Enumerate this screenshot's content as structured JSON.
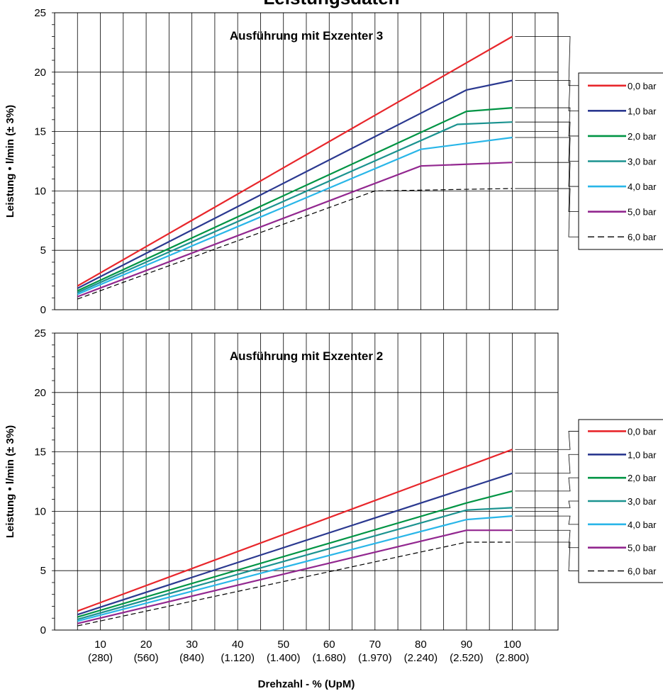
{
  "page": {
    "title": "Leistungsdaten"
  },
  "chart_data": [
    {
      "type": "line",
      "title": "Ausführung mit Exzenter 3",
      "xlabel": "",
      "ylabel": "Leistung • l/min (± 3%)",
      "xlim": [
        0,
        110
      ],
      "ylim": [
        0,
        25
      ],
      "yticks": [
        0,
        5,
        10,
        15,
        20,
        25
      ],
      "grid": true,
      "legend": "right",
      "series": [
        {
          "name": "0,0 bar",
          "color": "#e8262b",
          "dash": false,
          "x": [
            5,
            100
          ],
          "y": [
            2.0,
            23.0
          ]
        },
        {
          "name": "1,0 bar",
          "color": "#2b3990",
          "dash": false,
          "x": [
            5,
            90,
            100
          ],
          "y": [
            1.8,
            18.5,
            19.3
          ]
        },
        {
          "name": "2,0 bar",
          "color": "#009444",
          "dash": false,
          "x": [
            5,
            90,
            100
          ],
          "y": [
            1.6,
            16.7,
            17.0
          ]
        },
        {
          "name": "3,0 bar",
          "color": "#1b9390",
          "dash": false,
          "x": [
            5,
            88,
            100
          ],
          "y": [
            1.45,
            15.6,
            15.8
          ]
        },
        {
          "name": "4,0 bar",
          "color": "#29b6e8",
          "dash": false,
          "x": [
            5,
            80,
            100
          ],
          "y": [
            1.3,
            13.5,
            14.5
          ]
        },
        {
          "name": "5,0 bar",
          "color": "#92278f",
          "dash": false,
          "x": [
            5,
            80,
            100
          ],
          "y": [
            1.1,
            12.1,
            12.4
          ]
        },
        {
          "name": "6,0 bar",
          "color": "#000000",
          "dash": true,
          "x": [
            5,
            70,
            100
          ],
          "y": [
            0.9,
            10.0,
            10.2
          ]
        }
      ]
    },
    {
      "type": "line",
      "title": "Ausführung mit Exzenter 2",
      "xlabel": "Drehzahl - % (UpM)",
      "ylabel": "Leistung • l/min (± 3%)",
      "xlim": [
        0,
        110
      ],
      "ylim": [
        0,
        25
      ],
      "yticks": [
        0,
        5,
        10,
        15,
        20,
        25
      ],
      "xticks": [
        10,
        20,
        30,
        40,
        50,
        60,
        70,
        80,
        90,
        100
      ],
      "xtick_labels": [
        "10",
        "20",
        "30",
        "40",
        "50",
        "60",
        "70",
        "80",
        "90",
        "100"
      ],
      "xtick_sublabels": [
        "(280)",
        "(560)",
        "(840)",
        "(1.120)",
        "(1.400)",
        "(1.680)",
        "(1.970)",
        "(2.240)",
        "(2.520)",
        "(2.800)"
      ],
      "grid": true,
      "legend": "right",
      "series": [
        {
          "name": "0,0 bar",
          "color": "#e8262b",
          "dash": false,
          "x": [
            5,
            100
          ],
          "y": [
            1.6,
            15.2
          ]
        },
        {
          "name": "1,0 bar",
          "color": "#2b3990",
          "dash": false,
          "x": [
            5,
            100
          ],
          "y": [
            1.3,
            13.2
          ]
        },
        {
          "name": "2,0 bar",
          "color": "#009444",
          "dash": false,
          "x": [
            5,
            90,
            100
          ],
          "y": [
            1.1,
            10.7,
            11.7
          ]
        },
        {
          "name": "3,0 bar",
          "color": "#1b9390",
          "dash": false,
          "x": [
            5,
            90,
            100
          ],
          "y": [
            0.9,
            10.1,
            10.3
          ]
        },
        {
          "name": "4,0 bar",
          "color": "#29b6e8",
          "dash": false,
          "x": [
            5,
            90,
            100
          ],
          "y": [
            0.75,
            9.3,
            9.6
          ]
        },
        {
          "name": "5,0 bar",
          "color": "#92278f",
          "dash": false,
          "x": [
            5,
            90,
            100
          ],
          "y": [
            0.55,
            8.4,
            8.4
          ]
        },
        {
          "name": "6,0 bar",
          "color": "#000000",
          "dash": true,
          "x": [
            5,
            90,
            100
          ],
          "y": [
            0.35,
            7.4,
            7.4
          ]
        }
      ]
    }
  ]
}
